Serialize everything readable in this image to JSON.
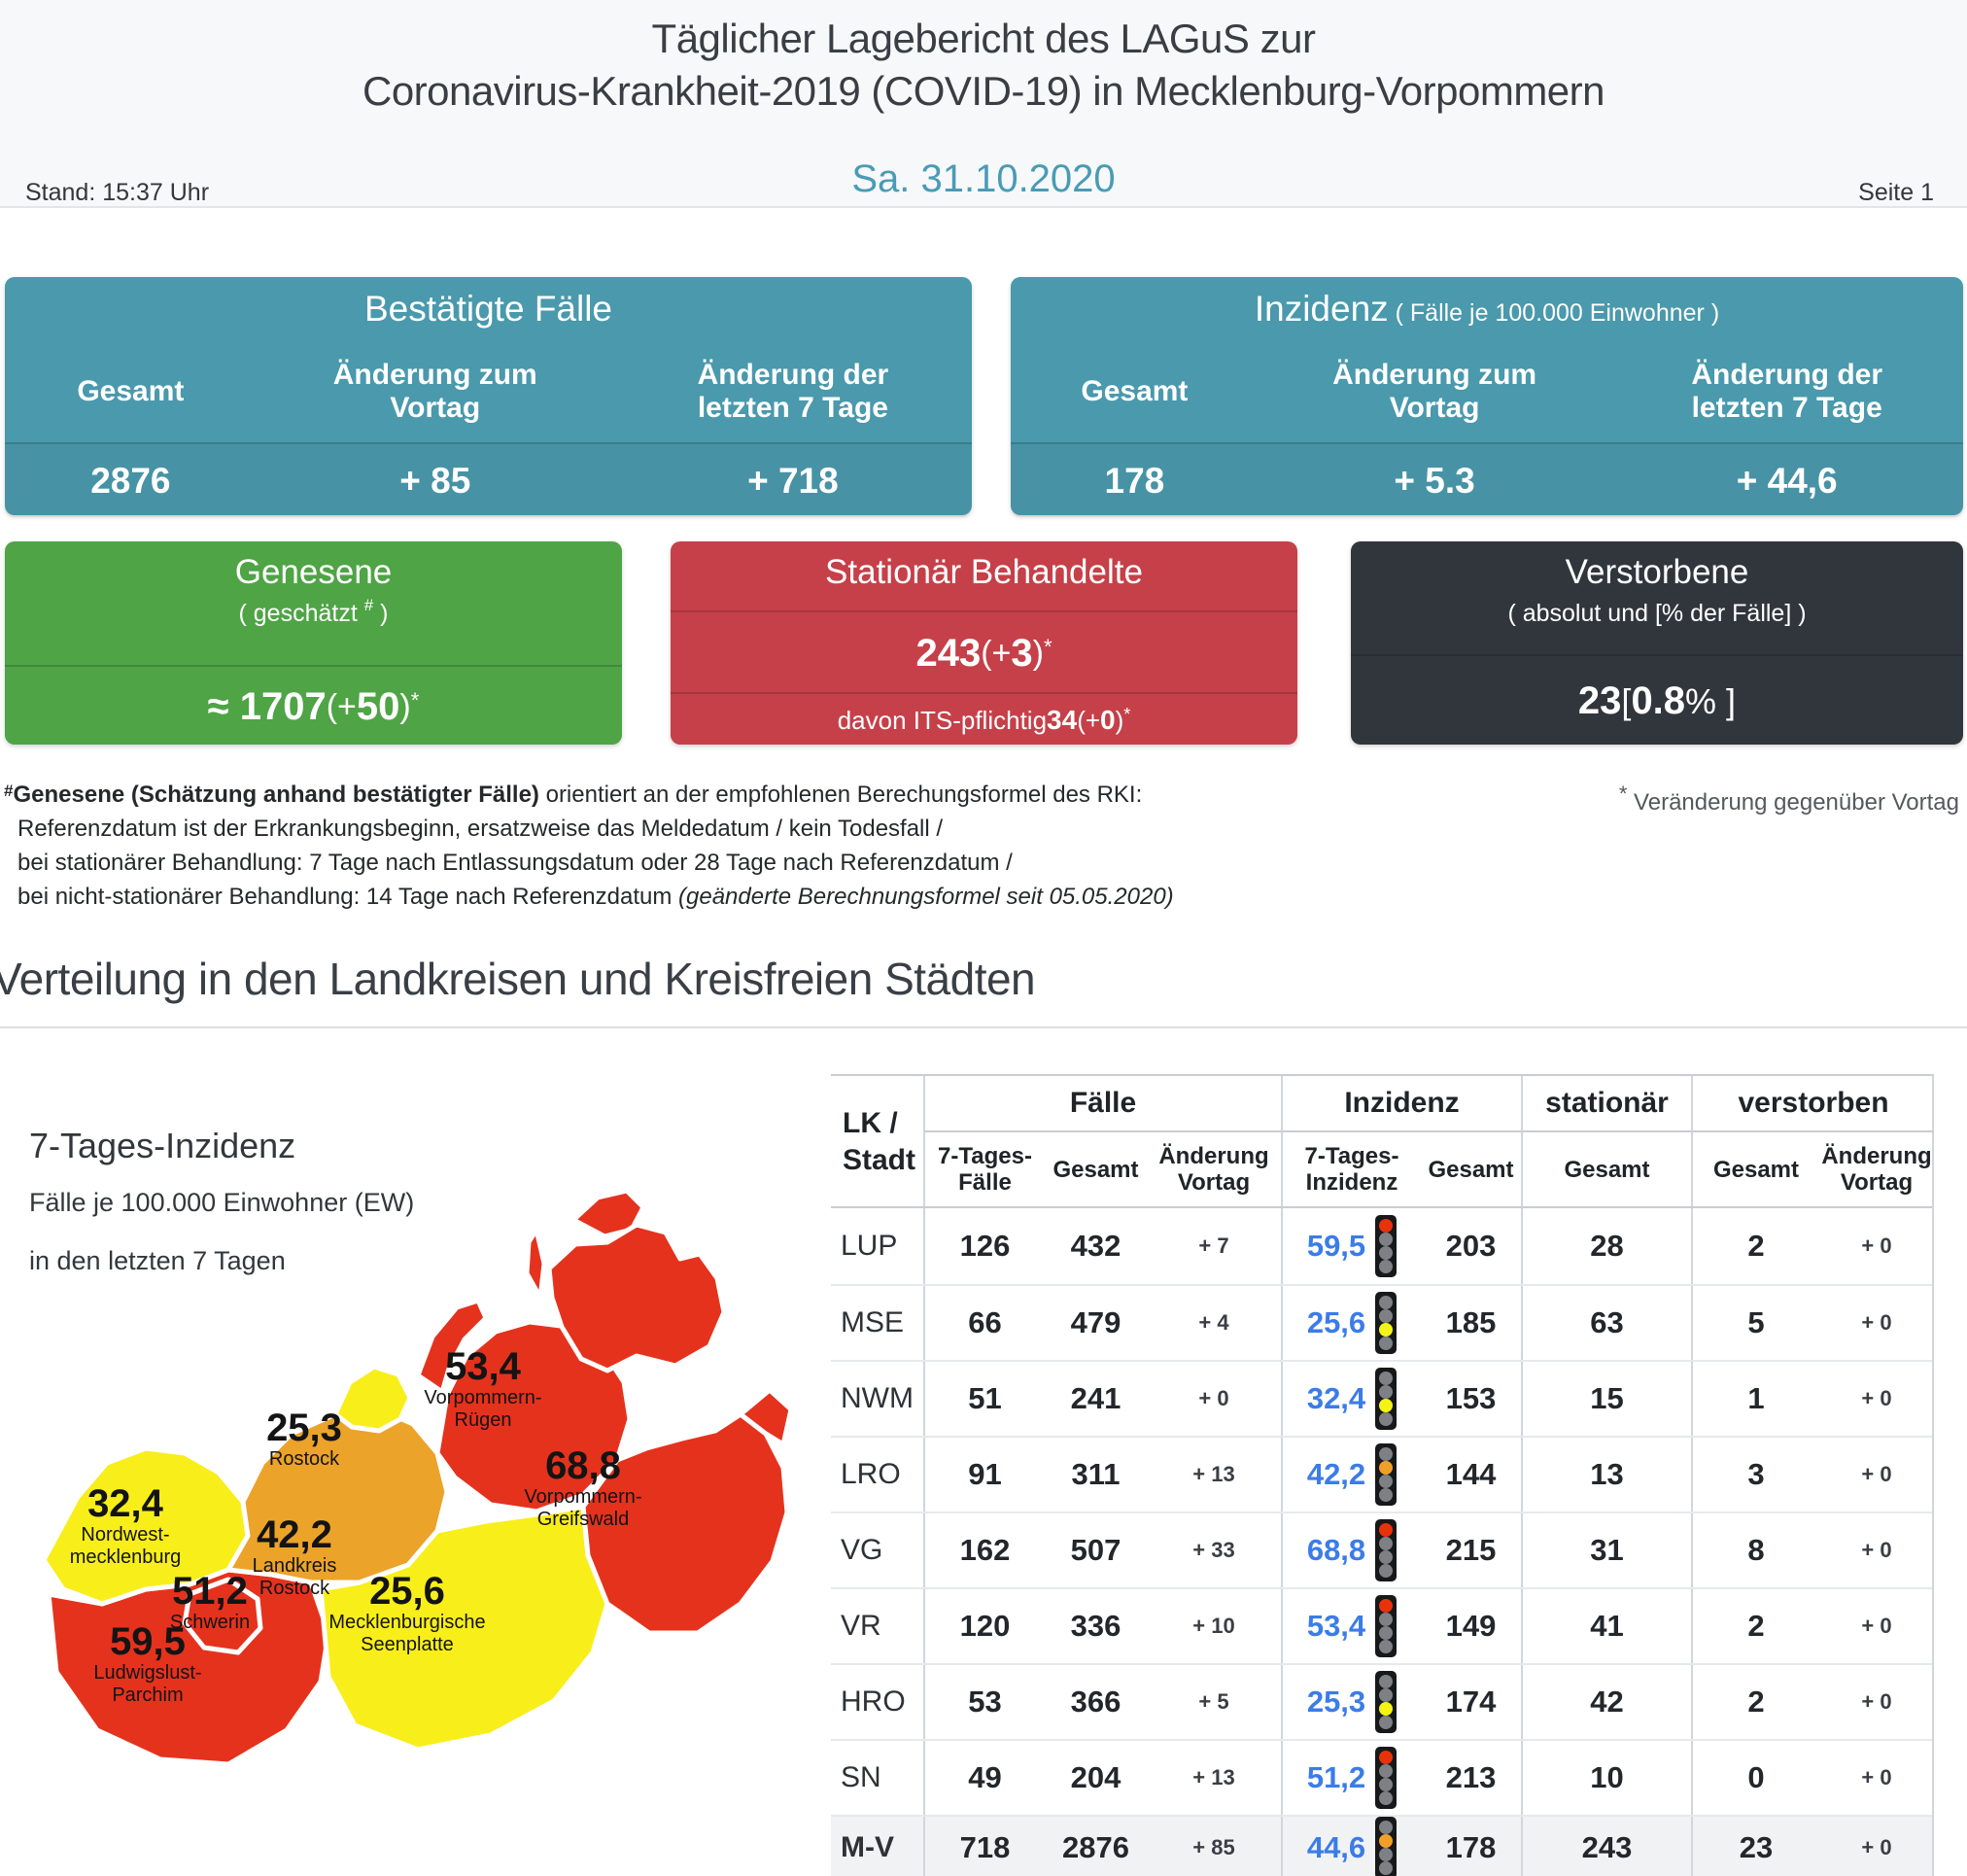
{
  "colors": {
    "teal": "#4a99ac",
    "green": "#4fa446",
    "redbox": "#c64049",
    "dark": "#31363d",
    "date": "#4a9bb5",
    "blue": "#3b7ce8",
    "mapred": "#e5321d",
    "maporange": "#eba32a",
    "mapyellow": "#f8ee1a",
    "lightred": "#e8320a",
    "lightorange": "#f0a028",
    "lightyellow": "#f3f315"
  },
  "header": {
    "title_line1": "Täglicher Lagebericht des LAGuS zur",
    "title_line2": "Coronavirus-Krankheit-2019 (COVID-19) in Mecklenburg-Vorpommern",
    "stand": "Stand: 15:37 Uhr",
    "date": "Sa. 31.10.2020",
    "page": "Seite 1"
  },
  "cards": {
    "confirmed": {
      "title": "Bestätigte Fälle",
      "cols": [
        "Gesamt",
        "Änderung zum\nVortag",
        "Änderung der\nletzten 7 Tage"
      ],
      "values": [
        "2876",
        "+ 85",
        "+ 718"
      ]
    },
    "incidence": {
      "title": "Inzidenz",
      "subtitle": " ( Fälle je 100.000 Einwohner )",
      "cols": [
        "Gesamt",
        "Änderung zum\nVortag",
        "Änderung der\nletzten 7 Tage"
      ],
      "values": [
        "178",
        "+ 5.3",
        "+ 44,6"
      ]
    },
    "recovered": {
      "title": "Genesene",
      "subtitle_pre": "( geschätzt ",
      "subtitle_sup": "#",
      "subtitle_post": " )",
      "value": "≈ 1707",
      "mid": " (+ ",
      "delta": "50",
      "close": " )",
      "star": "*"
    },
    "hospital": {
      "title": "Stationär Behandelte",
      "value": "243",
      "mid": " (+ ",
      "delta": "3",
      "close": " )",
      "star": "*",
      "icu_label": "davon ITS-pflichtig ",
      "icu_value": "34",
      "icu_mid": " (+ ",
      "icu_delta": "0",
      "icu_close": ")",
      "icu_star": "*"
    },
    "deaths": {
      "title": "Verstorbene",
      "subtitle": "( absolut und [% der Fälle] )",
      "value": "23",
      "open": " [ ",
      "rate": "0.8",
      "close": " % ]"
    }
  },
  "footnote": {
    "hash": "#",
    "line1_bold": "Genesene (Schätzung anhand bestätigter Fälle)",
    "line1_rest": " orientiert an der empfohlenen Berechungsformel des RKI:",
    "line2": "Referenzdatum ist der Erkrankungsbeginn, ersatzweise das Meldedatum / kein Todesfall /",
    "line3": "bei stationärer Behandlung: 7 Tage nach Entlassungsdatum oder 28 Tage nach Referenzdatum /",
    "line4_pre": "bei nicht-stationärer Behandlung: 14 Tage nach Referenzdatum ",
    "line4_italic": "(geänderte Berechnungsformel seit 05.05.2020)",
    "star_note": " Veränderung gegenüber Vortag",
    "star": "*"
  },
  "section_title": "Verteilung in den Landkreisen und Kreisfreien Städten",
  "map": {
    "title": "7-Tages-Inzidenz",
    "subtitle1": "Fälle je 100.000 Einwohner (EW)",
    "subtitle2": "in den letzten 7 Tagen",
    "regions": [
      {
        "id": "vorpommern-ruegen",
        "value": "53,4",
        "name1": "Vorpommern-",
        "name2": "Rügen",
        "color": "red"
      },
      {
        "id": "rostock-stadt",
        "value": "25,3",
        "name1": "Rostock",
        "name2": "",
        "color": "yellow"
      },
      {
        "id": "vorpommern-greifswald",
        "value": "68,8",
        "name1": "Vorpommern-",
        "name2": "Greifswald",
        "color": "red"
      },
      {
        "id": "nordwestmecklenburg",
        "value": "32,4",
        "name1": "Nordwest-",
        "name2": "mecklenburg",
        "color": "yellow"
      },
      {
        "id": "landkreis-rostock",
        "value": "42,2",
        "name1": "Landkreis",
        "name2": "Rostock",
        "color": "orange"
      },
      {
        "id": "schwerin",
        "value": "51,2",
        "name1": "Schwerin",
        "name2": "",
        "color": "red"
      },
      {
        "id": "mecklenburgische-seenplatte",
        "value": "25,6",
        "name1": "Mecklenburgische",
        "name2": "Seenplatte",
        "color": "yellow"
      },
      {
        "id": "ludwigslust-parchim",
        "value": "59,5",
        "name1": "Ludwigslust-",
        "name2": "Parchim",
        "color": "red"
      }
    ]
  },
  "table": {
    "corner": {
      "l1": "LK /",
      "l2": "Stadt"
    },
    "groups": [
      "Fälle",
      "Inzidenz",
      "stationär",
      "verstorben"
    ],
    "sub": [
      "7-Tages-\nFälle",
      "Gesamt",
      "Änderung\nVortag",
      "7-Tages-\nInzidenz",
      "Gesamt",
      "Gesamt",
      "Gesamt",
      "Änderung\nVortag"
    ],
    "rows": [
      {
        "lk": "LUP",
        "f7": "126",
        "ges": "432",
        "av": "+ 7",
        "i7": "59,5",
        "light": "red",
        "iges": "203",
        "stat": "28",
        "vges": "2",
        "vav": "+ 0",
        "em": false
      },
      {
        "lk": "MSE",
        "f7": "66",
        "ges": "479",
        "av": "+ 4",
        "i7": "25,6",
        "light": "yellow",
        "iges": "185",
        "stat": "63",
        "vges": "5",
        "vav": "+ 0",
        "em": false
      },
      {
        "lk": "NWM",
        "f7": "51",
        "ges": "241",
        "av": "+ 0",
        "i7": "32,4",
        "light": "yellow",
        "iges": "153",
        "stat": "15",
        "vges": "1",
        "vav": "+ 0",
        "em": false
      },
      {
        "lk": "LRO",
        "f7": "91",
        "ges": "311",
        "av": "+ 13",
        "i7": "42,2",
        "light": "orange",
        "iges": "144",
        "stat": "13",
        "vges": "3",
        "vav": "+ 0",
        "em": false
      },
      {
        "lk": "VG",
        "f7": "162",
        "ges": "507",
        "av": "+ 33",
        "i7": "68,8",
        "light": "red",
        "iges": "215",
        "stat": "31",
        "vges": "8",
        "vav": "+ 0",
        "em": false
      },
      {
        "lk": "VR",
        "f7": "120",
        "ges": "336",
        "av": "+ 10",
        "i7": "53,4",
        "light": "red",
        "iges": "149",
        "stat": "41",
        "vges": "2",
        "vav": "+ 0",
        "em": false
      },
      {
        "lk": "HRO",
        "f7": "53",
        "ges": "366",
        "av": "+ 5",
        "i7": "25,3",
        "light": "yellow",
        "iges": "174",
        "stat": "42",
        "vges": "2",
        "vav": "+ 0",
        "em": false
      },
      {
        "lk": "SN",
        "f7": "49",
        "ges": "204",
        "av": "+ 13",
        "i7": "51,2",
        "light": "red",
        "iges": "213",
        "stat": "10",
        "vges": "0",
        "vav": "+ 0",
        "em": false
      },
      {
        "lk": "M-V",
        "f7": "718",
        "ges": "2876",
        "av": "+ 85",
        "i7": "44,6",
        "light": "orange",
        "iges": "178",
        "stat": "243",
        "vges": "23",
        "vav": "+ 0",
        "em": true
      }
    ]
  }
}
